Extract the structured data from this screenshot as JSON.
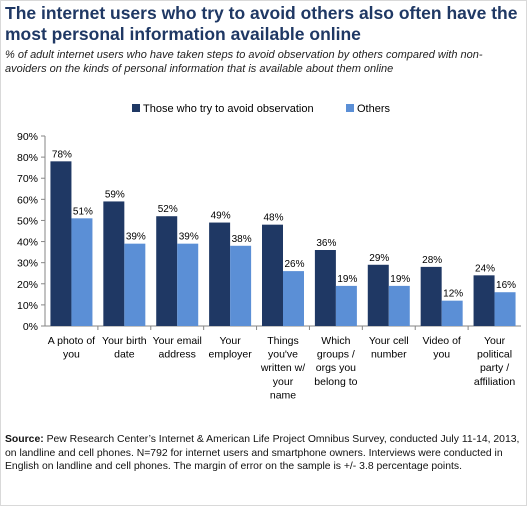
{
  "title": "The internet users who try to avoid others also often have the most personal information available online",
  "subtitle": "% of adult internet users who have taken steps to avoid observation by others compared with non-avoiders on the kinds of personal information that is available about them online",
  "source_label": "Source:",
  "source_text": "Pew Research Center’s Internet & American Life Project Omnibus Survey, conducted July 11-14, 2013, on landline and cell phones. N=792 for internet users and smartphone owners. Interviews were conducted in English on landline and cell phones. The margin of error on the sample is +/- 3.8 percentage points.",
  "colors": {
    "series1": "#1f3864",
    "series2": "#5b8fd6"
  },
  "chart_data": {
    "type": "bar",
    "title": "",
    "xlabel": "",
    "ylabel": "",
    "ylim": [
      0,
      90
    ],
    "yticks": [
      "0%",
      "10%",
      "20%",
      "30%",
      "40%",
      "50%",
      "60%",
      "70%",
      "80%",
      "90%"
    ],
    "legend_position": "top-right",
    "grid": false,
    "categories": [
      [
        "A photo of",
        "you"
      ],
      [
        "Your birth",
        "date"
      ],
      [
        "Your email",
        "address"
      ],
      [
        "Your",
        "employer"
      ],
      [
        "Things",
        "you've",
        "written w/",
        "your",
        "name"
      ],
      [
        "Which",
        "groups /",
        "orgs you",
        "belong to"
      ],
      [
        "Your cell",
        "number"
      ],
      [
        "Video of",
        "you"
      ],
      [
        "Your",
        "political",
        "party /",
        "affiliation"
      ]
    ],
    "series": [
      {
        "name": "Those who try to avoid observation",
        "values": [
          78,
          59,
          52,
          49,
          48,
          36,
          29,
          28,
          24
        ],
        "labels": [
          "78%",
          "59%",
          "52%",
          "49%",
          "48%",
          "36%",
          "29%",
          "28%",
          "24%"
        ]
      },
      {
        "name": "Others",
        "values": [
          51,
          39,
          39,
          38,
          26,
          19,
          19,
          12,
          16
        ],
        "labels": [
          "51%",
          "39%",
          "39%",
          "38%",
          "26%",
          "19%",
          "19%",
          "12%",
          "16%"
        ]
      }
    ]
  }
}
